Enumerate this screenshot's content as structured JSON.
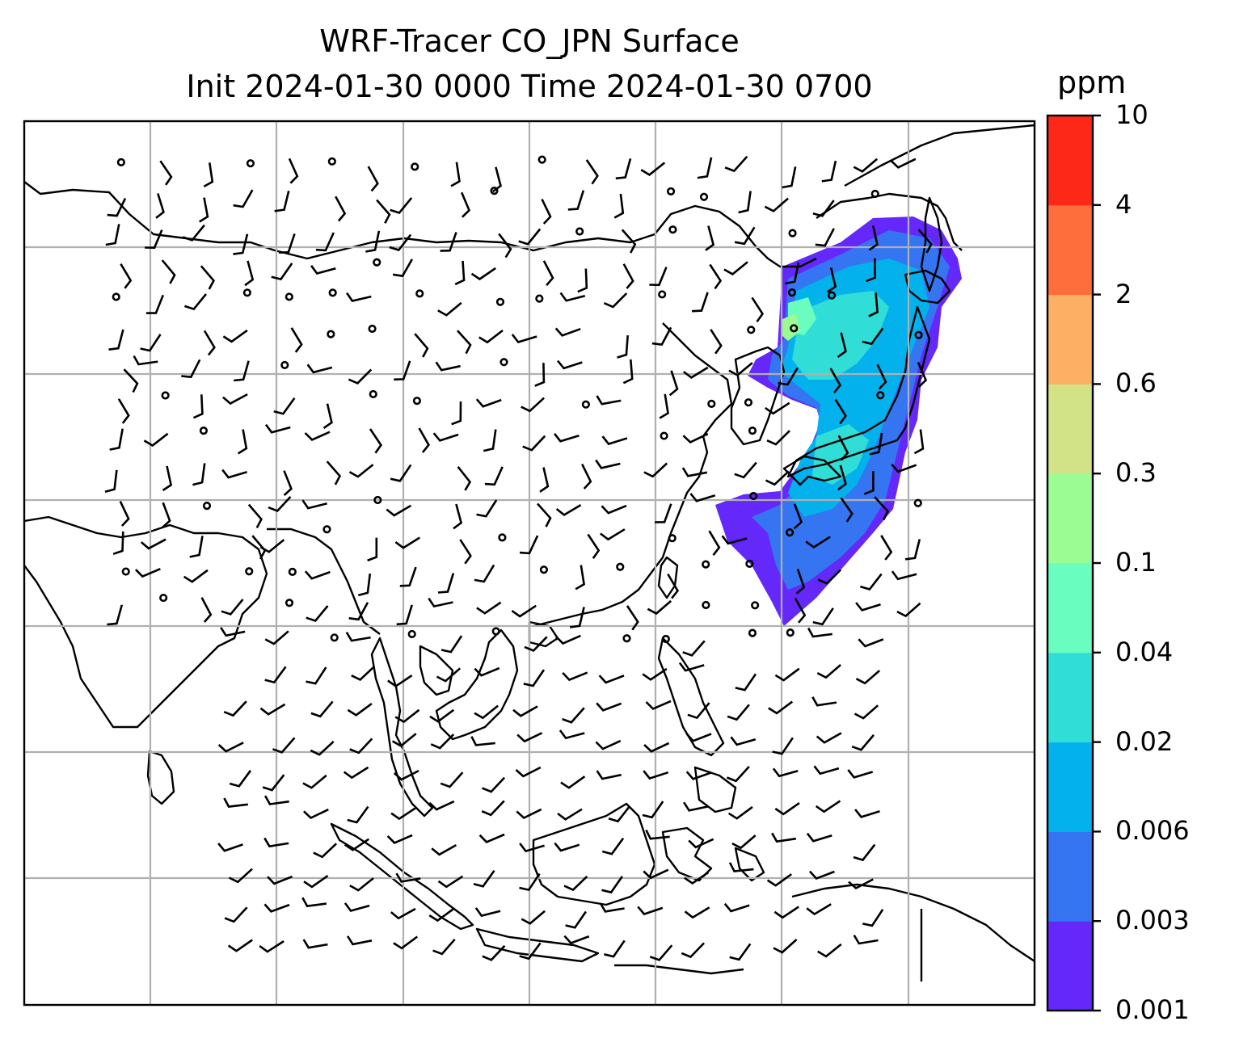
{
  "title_line1": "WRF-Tracer CO_JPN Surface",
  "title_line2": "Init 2024-01-30 0000 Time 2024-01-30 0700",
  "colorbar": {
    "unit": "ppm",
    "ticks": [
      "0.001",
      "0.003",
      "0.006",
      "0.02",
      "0.04",
      "0.1",
      "0.3",
      "0.6",
      "2",
      "4",
      "10"
    ],
    "colors": [
      "#6428fa",
      "#3575f2",
      "#03b1ec",
      "#31ded7",
      "#6afdc0",
      "#9cfc94",
      "#d1e287",
      "#fdb063",
      "#fe6d3c",
      "#fd2817"
    ]
  },
  "colors": {
    "coastline": "#000000",
    "gridlines": "#b0b0b0",
    "wind_barbs": "#000000"
  },
  "chart_data": {
    "type": "map",
    "field": "CO_JPN surface tracer concentration",
    "units": "ppm",
    "levels": [
      0.001,
      0.003,
      0.006,
      0.02,
      0.04,
      0.1,
      0.3,
      0.6,
      2,
      4,
      10
    ],
    "plume_region": "Japan and Northwest Pacific",
    "grid": true,
    "overlays": [
      "coastlines",
      "wind barbs"
    ]
  }
}
